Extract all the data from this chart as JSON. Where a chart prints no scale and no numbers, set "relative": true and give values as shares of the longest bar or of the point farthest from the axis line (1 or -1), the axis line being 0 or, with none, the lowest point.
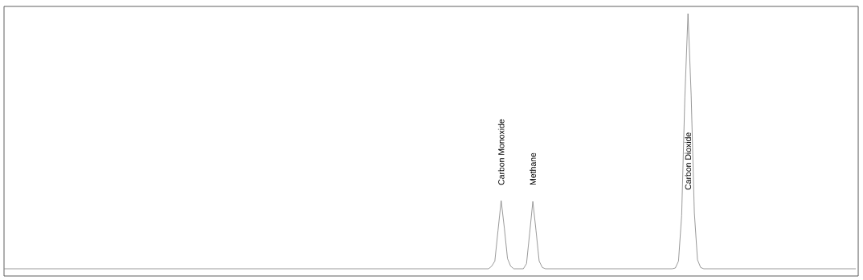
{
  "chart_data": {
    "type": "line",
    "relative": true,
    "categories": [
      null,
      null,
      null,
      null,
      null,
      null,
      null,
      null,
      null,
      null,
      null,
      null,
      null,
      null,
      null,
      null,
      null,
      null,
      null,
      null,
      null,
      null,
      null,
      null,
      null,
      null,
      null,
      null,
      null,
      null,
      null,
      null,
      null,
      null,
      null,
      null,
      null,
      null,
      null,
      null,
      null,
      null,
      null,
      null,
      null,
      null,
      null,
      null,
      null,
      null,
      null,
      null,
      null,
      null,
      null,
      null,
      null,
      null,
      null,
      null,
      null,
      null,
      null,
      null,
      null,
      null,
      null,
      null,
      null,
      null,
      null,
      null,
      null,
      null,
      null,
      null,
      null,
      null,
      null,
      null,
      null,
      null,
      null,
      null,
      null,
      null,
      null,
      null,
      null,
      null,
      null,
      null,
      null,
      null,
      null,
      null,
      null,
      null,
      null,
      null,
      null,
      null,
      null,
      null,
      null,
      null,
      null,
      null,
      null,
      null,
      null,
      null,
      null,
      null,
      null,
      null,
      null,
      null,
      null,
      null,
      null,
      null,
      null,
      null,
      null,
      null,
      null,
      null,
      null,
      null,
      null,
      null,
      null,
      null,
      null,
      null,
      null,
      null,
      null,
      null,
      null,
      null,
      null,
      null,
      null,
      null,
      null,
      null,
      null,
      null,
      null,
      null,
      null,
      null,
      null,
      null,
      null,
      null,
      null,
      null,
      null,
      null,
      null,
      null,
      null,
      null,
      null,
      null,
      null,
      null,
      null,
      null,
      null,
      null,
      null,
      null,
      null,
      null,
      null,
      null,
      null,
      null,
      null,
      null,
      null,
      null,
      null,
      null,
      null,
      null,
      null,
      null,
      null,
      null,
      null,
      null,
      null,
      null,
      null,
      null,
      null,
      null,
      null,
      null,
      null,
      null,
      null,
      null,
      null,
      null,
      null,
      null,
      null,
      null,
      null,
      null,
      null,
      null,
      null,
      null,
      null,
      null,
      null,
      null,
      null,
      null,
      null,
      null,
      null,
      null,
      null,
      null,
      null,
      null,
      null,
      null,
      null,
      null,
      null,
      null,
      null,
      null,
      null,
      null,
      null,
      null,
      null,
      null,
      null,
      null,
      null,
      null,
      null,
      null,
      null,
      null,
      null,
      null,
      null,
      null,
      null,
      null,
      null,
      null,
      null,
      null,
      null,
      null,
      null,
      null
    ],
    "series": [
      {
        "color": "#808080",
        "values": [
          0,
          0,
          0,
          0,
          0,
          0,
          0,
          0,
          0,
          0,
          0,
          0,
          0,
          0,
          0,
          0,
          0,
          0,
          0,
          0,
          0,
          0,
          0,
          0,
          0,
          0,
          0,
          0,
          0,
          0,
          0,
          0,
          0,
          0,
          0,
          0,
          0,
          0,
          0,
          0,
          0,
          0,
          0,
          0,
          0,
          0,
          0,
          0,
          0,
          0,
          0,
          0,
          0,
          0,
          0,
          0,
          0,
          0,
          0,
          0,
          0,
          0,
          0,
          0,
          0,
          0,
          0,
          0,
          0,
          0,
          0,
          0,
          0,
          0,
          0,
          0,
          0,
          0,
          0,
          0,
          0,
          0,
          0,
          0,
          0,
          0,
          0,
          0,
          0,
          0,
          0,
          0,
          0,
          0,
          0,
          0,
          0,
          0,
          0,
          0,
          0,
          0,
          0,
          0,
          0,
          0,
          0,
          0,
          0,
          0,
          0,
          0,
          0,
          0,
          0,
          0,
          0,
          0,
          0,
          0,
          0,
          0,
          0,
          0,
          0,
          0,
          0,
          0,
          0,
          0,
          0,
          0,
          0,
          0,
          0,
          0,
          0,
          0,
          0,
          0,
          0,
          0,
          0,
          0,
          0,
          0,
          0,
          0,
          0,
          0,
          0,
          0,
          0,
          0,
          0.01,
          0.03,
          0.15,
          0.267,
          0.16,
          0.04,
          0.01,
          0,
          0,
          0,
          0,
          0.02,
          0.14,
          0.264,
          0.15,
          0.03,
          0.005,
          0,
          0,
          0,
          0,
          0,
          0,
          0,
          0,
          0,
          0,
          0,
          0,
          0,
          0,
          0,
          0,
          0,
          0,
          0,
          0,
          0,
          0,
          0,
          0,
          0,
          0,
          0,
          0,
          0,
          0,
          0,
          0,
          0,
          0,
          0,
          0,
          0,
          0,
          0,
          0,
          0,
          0.003,
          0.03,
          0.21,
          0.67,
          1,
          0.68,
          0.22,
          0.035,
          0.005,
          0,
          0,
          0,
          0,
          0,
          0,
          0,
          0,
          0,
          0,
          0,
          0,
          0,
          0,
          0,
          0,
          0,
          0,
          0,
          0,
          0,
          0,
          0,
          0,
          0,
          0,
          0,
          0,
          0,
          0,
          0,
          0,
          0,
          0,
          0,
          0,
          0,
          0,
          0,
          0,
          0,
          0,
          0,
          0,
          0,
          0,
          0,
          0,
          0
        ]
      }
    ],
    "annotations": [
      "Carbon Monoxide",
      "Methane",
      "Carbon Dioxide"
    ]
  }
}
